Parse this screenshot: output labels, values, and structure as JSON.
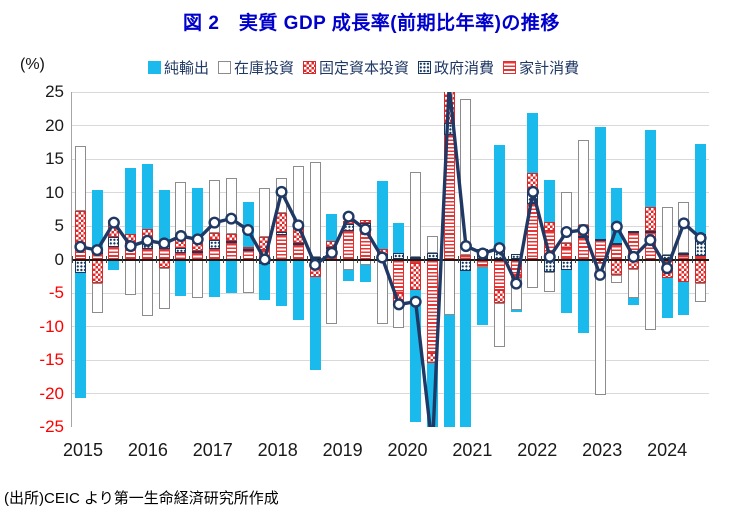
{
  "title": "図 2　実質 GDP 成長率(前期比年率)の推移",
  "y_unit": "(%)",
  "source": "(出所)CEIC より第一生命経済研究所作成",
  "legend": {
    "items": [
      {
        "key": "nx",
        "label": "純輸出"
      },
      {
        "key": "inv",
        "label": "在庫投資"
      },
      {
        "key": "fix",
        "label": "固定資本投資"
      },
      {
        "key": "gov",
        "label": "政府消費"
      },
      {
        "key": "hh",
        "label": "家計消費"
      }
    ]
  },
  "chart_data": {
    "type": "bar",
    "subtype": "stacked-bar-with-line-overlay",
    "title": "図 2　実質 GDP 成長率(前期比年率)の推移",
    "xlabel": "",
    "ylabel": "(%)",
    "ylim": [
      -25,
      25
    ],
    "grid": true,
    "legend_position": "top",
    "y_ticks": [
      25,
      20,
      15,
      10,
      5,
      0,
      -5,
      -10,
      -15,
      -20,
      -25
    ],
    "x_tick_labels": [
      "2015",
      "2016",
      "2017",
      "2018",
      "2019",
      "2020",
      "2021",
      "2022",
      "2023",
      "2024"
    ],
    "categories": [
      "2015Q1",
      "2015Q2",
      "2015Q3",
      "2015Q4",
      "2016Q1",
      "2016Q2",
      "2016Q3",
      "2016Q4",
      "2017Q1",
      "2017Q2",
      "2017Q3",
      "2017Q4",
      "2018Q1",
      "2018Q2",
      "2018Q3",
      "2018Q4",
      "2019Q1",
      "2019Q2",
      "2019Q3",
      "2019Q4",
      "2020Q1",
      "2020Q2",
      "2020Q3",
      "2020Q4",
      "2021Q1",
      "2021Q2",
      "2021Q3",
      "2021Q4",
      "2022Q1",
      "2022Q2",
      "2022Q3",
      "2022Q4",
      "2023Q1",
      "2023Q2",
      "2023Q3",
      "2023Q4",
      "2024Q1",
      "2024Q2"
    ],
    "series": [
      {
        "key": "hh",
        "name": "家計消費",
        "pattern": "red-horizontal-stripes",
        "values": [
          1.8,
          0.8,
          1.8,
          2.1,
          1.5,
          1.6,
          1.0,
          1.0,
          1.5,
          2.5,
          1.4,
          1.4,
          3.7,
          2.2,
          -1.2,
          1.6,
          4.2,
          4.6,
          0.5,
          -5.0,
          -0.5,
          -13.9,
          18.6,
          0.6,
          -0.8,
          -4.5,
          -2.3,
          8.3,
          4.2,
          1.7,
          3.2,
          2.9,
          2.2,
          4.0,
          4.1,
          -1.5,
          0.7,
          0.5
        ]
      },
      {
        "key": "gov",
        "name": "政府消費",
        "pattern": "navy-dots",
        "values": [
          -2.0,
          0.3,
          1.5,
          0.3,
          0.8,
          0.8,
          0.7,
          0.2,
          1.4,
          0.3,
          0.2,
          -0.6,
          0.4,
          0.3,
          0.3,
          0.3,
          1.1,
          0.8,
          0.3,
          1.0,
          0.3,
          1.0,
          1.8,
          -1.7,
          1.5,
          1.7,
          0.8,
          1.6,
          -1.8,
          -1.5,
          0.3,
          0.2,
          0.3,
          0.3,
          0.2,
          0.7,
          0.2,
          3.3
        ]
      },
      {
        "key": "fix",
        "name": "固定資本投資",
        "pattern": "red-checker",
        "values": [
          5.5,
          -3.5,
          1.9,
          1.4,
          2.2,
          -1.2,
          1.5,
          1.2,
          1.1,
          1.0,
          0.3,
          2.0,
          2.9,
          2.3,
          -1.4,
          0.9,
          0.4,
          0.5,
          0.7,
          -1.6,
          -4.0,
          -1.6,
          7.0,
          0.0,
          -0.2,
          -2.0,
          -0.4,
          3.0,
          1.4,
          0.7,
          1.6,
          -0.5,
          -2.3,
          -1.4,
          3.6,
          -1.2,
          -3.4,
          -3.5
        ]
      },
      {
        "key": "inv",
        "name": "在庫投資",
        "pattern": "white-outline",
        "values": [
          9.6,
          -4.5,
          0.7,
          -5.3,
          -8.5,
          -6.2,
          8.4,
          -5.7,
          7.9,
          8.4,
          -5.0,
          7.3,
          5.1,
          9.2,
          14.2,
          -9.6,
          -1.6,
          -0.8,
          -9.6,
          -3.6,
          12.8,
          2.5,
          -8.3,
          23.4,
          -0.3,
          -6.5,
          -4.8,
          -4.3,
          -3.0,
          7.7,
          12.7,
          -19.7,
          -1.2,
          -4.3,
          -10.5,
          7.2,
          7.7,
          -2.8
        ]
      },
      {
        "key": "nx",
        "name": "純輸出",
        "pattern": "solid-cyan",
        "values": [
          -18.6,
          9.3,
          -1.5,
          9.8,
          9.8,
          8.0,
          -5.5,
          8.3,
          -5.6,
          -5.0,
          6.7,
          -5.4,
          -7.0,
          -9.0,
          -13.9,
          4.0,
          -1.6,
          -2.6,
          10.2,
          4.4,
          -19.8,
          -16.0,
          -19.0,
          -24.0,
          -8.5,
          15.4,
          -0.3,
          9.0,
          6.3,
          -6.5,
          -11.0,
          16.7,
          8.2,
          -1.1,
          11.5,
          -6.0,
          -4.9,
          13.5
        ]
      }
    ],
    "line_series": {
      "name": "実質GDP成長率(前期比年率)",
      "values": [
        1.9,
        1.4,
        5.5,
        2.0,
        2.8,
        2.4,
        3.5,
        3.0,
        5.5,
        6.1,
        4.4,
        0.0,
        10.1,
        5.1,
        -0.8,
        1.0,
        6.4,
        4.5,
        0.3,
        -6.7,
        -6.3,
        -28.1,
        26.0,
        2.0,
        0.9,
        1.7,
        -3.6,
        10.1,
        0.4,
        4.1,
        4.4,
        -2.3,
        4.9,
        0.4,
        2.9,
        -1.3,
        5.4,
        3.2
      ]
    },
    "colors": {
      "net_exports": "#1ABAEC",
      "pattern_red": "#DE2B2B",
      "pattern_navy": "#17375E",
      "line": "#1F3864",
      "marker_fill": "#FFFFFF",
      "title_blue": "#0000CC",
      "negative_tick_red": "#FF0000",
      "gridline": "#D9D9D9"
    }
  }
}
